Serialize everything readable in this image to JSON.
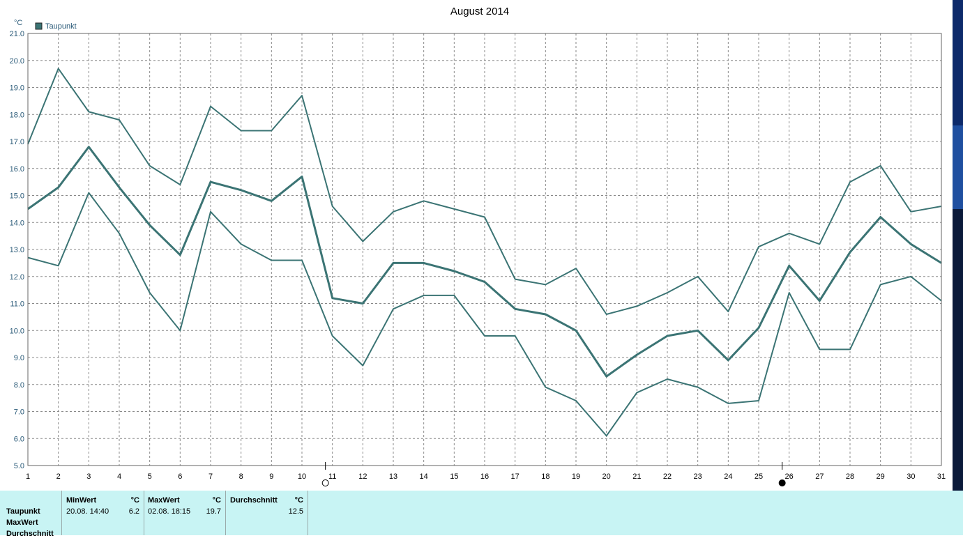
{
  "chart_data": {
    "type": "line",
    "title": "August 2014",
    "ylabel": "°C",
    "legend": {
      "label": "Taupunkt",
      "color": "#3b7474",
      "position": "top-left"
    },
    "ylim": [
      5.0,
      21.0
    ],
    "y_ticks": [
      "5.0",
      "6.0",
      "7.0",
      "8.0",
      "9.0",
      "10.0",
      "11.0",
      "12.0",
      "13.0",
      "14.0",
      "15.0",
      "16.0",
      "17.0",
      "18.0",
      "19.0",
      "20.0",
      "21.0"
    ],
    "x": [
      1,
      2,
      3,
      4,
      5,
      6,
      7,
      8,
      9,
      10,
      11,
      12,
      13,
      14,
      15,
      16,
      17,
      18,
      19,
      20,
      21,
      22,
      23,
      24,
      25,
      26,
      27,
      28,
      29,
      30,
      31
    ],
    "x_ticks": [
      "1",
      "2",
      "3",
      "4",
      "5",
      "6",
      "7",
      "8",
      "9",
      "10",
      "11",
      "12",
      "13",
      "14",
      "15",
      "16",
      "17",
      "18",
      "19",
      "20",
      "21",
      "22",
      "23",
      "24",
      "25",
      "26",
      "27",
      "28",
      "29",
      "30",
      "31"
    ],
    "grid": true,
    "line_color": "#3b7474",
    "series": [
      {
        "values": [
          16.9,
          19.7,
          18.1,
          17.8,
          16.1,
          15.4,
          18.3,
          17.4,
          17.4,
          18.7,
          14.6,
          13.3,
          14.4,
          14.8,
          14.5,
          14.2,
          11.9,
          11.7,
          12.3,
          10.6,
          10.9,
          11.4,
          12.0,
          10.7,
          13.1,
          13.6,
          13.2,
          15.5,
          16.1,
          14.4,
          14.6
        ]
      },
      {
        "values": [
          14.5,
          15.3,
          16.8,
          15.3,
          13.9,
          12.8,
          15.5,
          15.2,
          14.8,
          15.7,
          11.2,
          11.0,
          12.5,
          12.5,
          12.2,
          11.8,
          10.8,
          10.6,
          10.0,
          8.3,
          9.1,
          9.8,
          10.0,
          8.9,
          10.1,
          12.4,
          11.1,
          12.9,
          14.2,
          13.2,
          12.5
        ]
      },
      {
        "values": [
          12.7,
          12.4,
          15.1,
          13.6,
          11.4,
          10.0,
          14.4,
          13.2,
          12.6,
          12.6,
          9.8,
          8.7,
          10.8,
          11.3,
          11.3,
          9.8,
          9.8,
          7.9,
          7.4,
          6.1,
          7.7,
          8.2,
          7.9,
          7.3,
          7.4,
          11.4,
          9.3,
          9.3,
          11.7,
          12.0,
          11.1
        ]
      }
    ],
    "moon_markers": [
      {
        "day": 11,
        "phase": "full"
      },
      {
        "day": 26,
        "phase": "new"
      }
    ]
  },
  "stats": {
    "row_labels": [
      "Taupunkt",
      "MaxWert",
      "Durchschnitt"
    ],
    "min": {
      "header": "MinWert",
      "unit": "°C",
      "when": "20.08.  14:40",
      "value": "6.2"
    },
    "max": {
      "header": "MaxWert",
      "unit": "°C",
      "when": "02.08.  18:15",
      "value": "19.7"
    },
    "avg": {
      "header": "Durchschnitt",
      "unit": "°C",
      "value": "12.5"
    }
  }
}
